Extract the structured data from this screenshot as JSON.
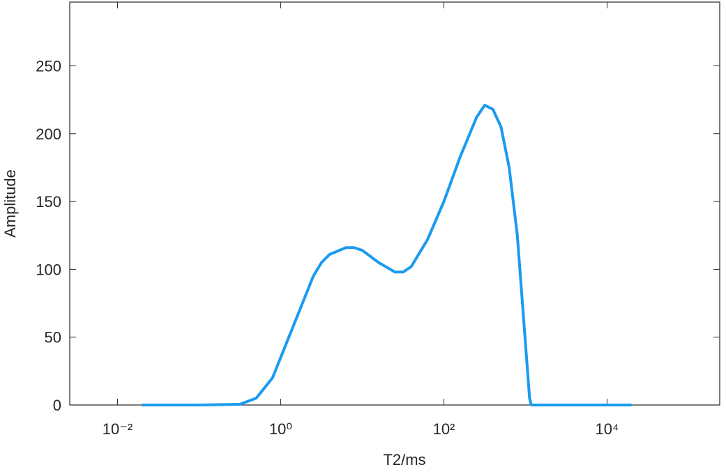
{
  "chart_data": {
    "type": "line",
    "xlabel": "T2/ms",
    "ylabel": "Amplitude",
    "xscale": "log",
    "xlim": [
      0.0026,
      240000
    ],
    "xticks": [
      {
        "value": 0.01,
        "label": "10⁻²"
      },
      {
        "value": 1,
        "label": "10⁰"
      },
      {
        "value": 100,
        "label": "10²"
      },
      {
        "value": 10000,
        "label": "10⁴"
      }
    ],
    "ylim": [
      0,
      297
    ],
    "yticks": [
      0,
      50,
      100,
      150,
      200,
      250
    ],
    "series": [
      {
        "name": "Amplitude",
        "color": "#1a9bf0",
        "x": [
          0.02,
          0.1,
          0.316,
          0.501,
          0.794,
          1,
          1.585,
          2.512,
          3.162,
          3.981,
          6.31,
          7.943,
          10,
          15.85,
          25.12,
          31.62,
          39.81,
          63.1,
          100,
          158.5,
          251.2,
          316.2,
          398.1,
          501.2,
          631,
          794.3,
          1000,
          1122,
          1175,
          19953
        ],
        "values": [
          0,
          0,
          0.5,
          5,
          20,
          35,
          65,
          95,
          105,
          111,
          116,
          116,
          114,
          105,
          98,
          98,
          102,
          122,
          150,
          183,
          212,
          221,
          218,
          205,
          175,
          125,
          45,
          5,
          0,
          0
        ]
      }
    ]
  }
}
